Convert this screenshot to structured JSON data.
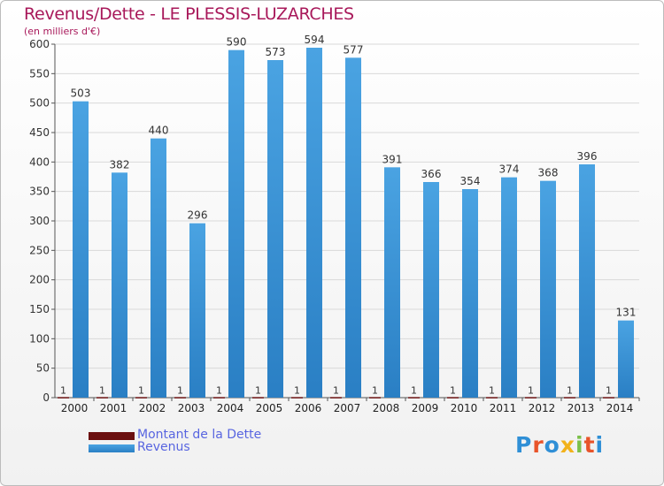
{
  "header": {
    "title": "Revenus/Dette - LE PLESSIS-LUZARCHES",
    "subtitle": "(en milliers d'€)"
  },
  "brand": {
    "text": "Proxiti",
    "colors": [
      "#2f8fd6",
      "#e8542a",
      "#2f8fd6",
      "#f2b21b",
      "#7cc04a",
      "#e8542a",
      "#2f8fd6"
    ]
  },
  "colors": {
    "title": "#a8185a",
    "dette": "#6b0f0f",
    "revenus": "#4aa3e2",
    "revenus_dark": "#2a7fc4",
    "legend_text": "#5865e0",
    "grid": "#d9d9d9"
  },
  "chart_data": {
    "type": "bar",
    "categories": [
      "2000",
      "2001",
      "2002",
      "2003",
      "2004",
      "2005",
      "2006",
      "2007",
      "2008",
      "2009",
      "2010",
      "2011",
      "2012",
      "2013",
      "2014"
    ],
    "series": [
      {
        "name": "Montant de la Dette",
        "values": [
          1,
          1,
          1,
          1,
          1,
          1,
          1,
          1,
          1,
          1,
          1,
          1,
          1,
          1,
          1
        ]
      },
      {
        "name": "Revenus",
        "values": [
          503,
          382,
          440,
          296,
          590,
          573,
          594,
          577,
          391,
          366,
          354,
          374,
          368,
          396,
          131
        ]
      }
    ],
    "ylim": [
      0,
      600
    ],
    "yticks": [
      0,
      50,
      100,
      150,
      200,
      250,
      300,
      350,
      400,
      450,
      500,
      550,
      600
    ],
    "grid": true,
    "legend": "bottom-left"
  }
}
